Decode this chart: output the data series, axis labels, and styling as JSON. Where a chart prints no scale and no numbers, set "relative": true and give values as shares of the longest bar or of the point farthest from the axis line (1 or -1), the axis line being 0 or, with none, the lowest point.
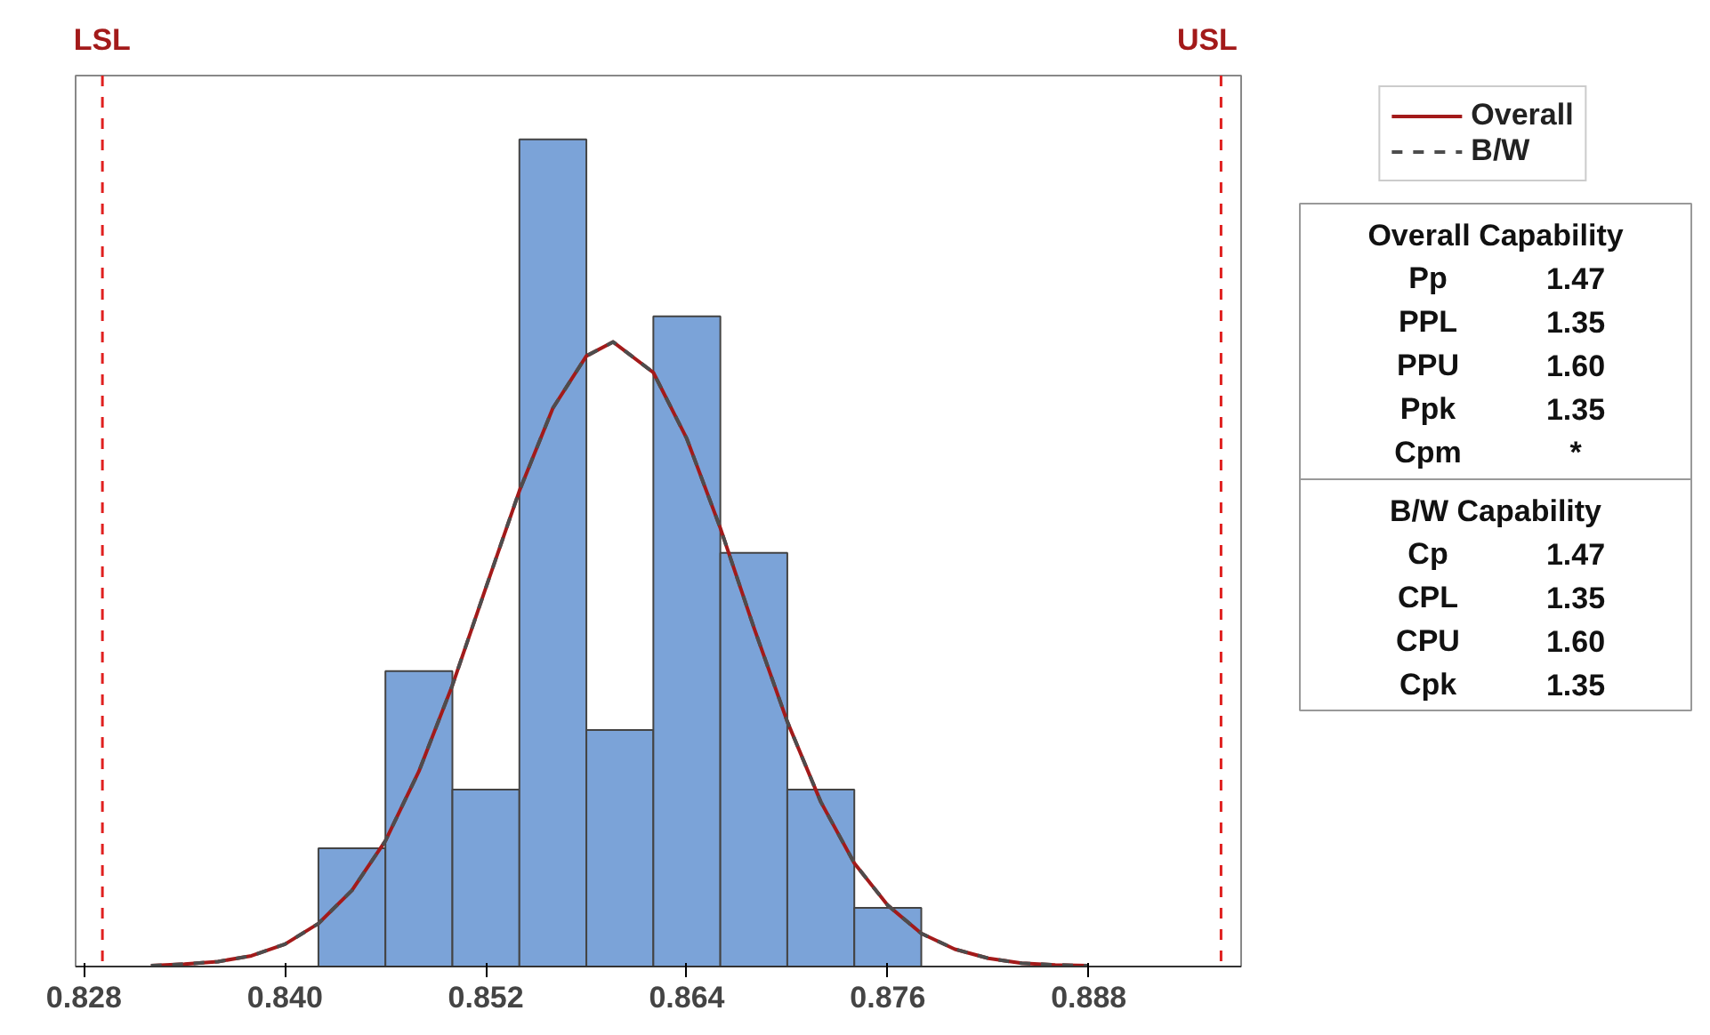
{
  "chart_data": [
    {
      "type": "histogram",
      "relative": true,
      "bins": [
        0.842,
        0.846,
        0.85,
        0.854,
        0.858,
        0.862,
        0.866,
        0.87,
        0.874,
        0.878
      ],
      "values": [
        0.143,
        0.357,
        0.214,
        1,
        0.286,
        0.786,
        0.5,
        0.214,
        0.071
      ],
      "color": "#7ba3d8",
      "series": [
        {
          "type": "line",
          "name": "Overall",
          "color": "#a31a1a",
          "line_style": "solid",
          "x": [
            0.832,
            0.834,
            0.836,
            0.838,
            0.84,
            0.842,
            0.844,
            0.846,
            0.848,
            0.85,
            0.852,
            0.854,
            0.856,
            0.858,
            0.8596,
            0.862,
            0.864,
            0.866,
            0.868,
            0.87,
            0.872,
            0.874,
            0.876,
            0.878,
            0.88,
            0.882,
            0.884,
            0.886,
            0.888
          ],
          "values": [
            0.001,
            0.003,
            0.006,
            0.013,
            0.027,
            0.052,
            0.092,
            0.152,
            0.236,
            0.34,
            0.458,
            0.575,
            0.675,
            0.738,
            0.755,
            0.718,
            0.638,
            0.53,
            0.41,
            0.296,
            0.199,
            0.125,
            0.074,
            0.04,
            0.021,
            0.01,
            0.004,
            0.002,
            0.001
          ]
        },
        {
          "type": "line",
          "name": "B/W",
          "color": "#4d4d4d",
          "line_style": "dashed",
          "x": [
            0.832,
            0.834,
            0.836,
            0.838,
            0.84,
            0.842,
            0.844,
            0.846,
            0.848,
            0.85,
            0.852,
            0.854,
            0.856,
            0.858,
            0.8596,
            0.862,
            0.864,
            0.866,
            0.868,
            0.87,
            0.872,
            0.874,
            0.876,
            0.878,
            0.88,
            0.882,
            0.884,
            0.886,
            0.888
          ],
          "values": [
            0.001,
            0.003,
            0.006,
            0.013,
            0.027,
            0.052,
            0.092,
            0.152,
            0.236,
            0.34,
            0.458,
            0.575,
            0.675,
            0.738,
            0.755,
            0.718,
            0.638,
            0.53,
            0.41,
            0.296,
            0.199,
            0.125,
            0.074,
            0.04,
            0.021,
            0.01,
            0.004,
            0.002,
            0.001
          ]
        }
      ],
      "xlim": [
        0.8275,
        0.8971
      ],
      "xticks": [
        0.828,
        {
          "value": 0.84,
          "label": "0.840"
        },
        0.852,
        0.864,
        0.876,
        0.888
      ],
      "ref_lines": [
        {
          "axis": "x",
          "value": 0.8291,
          "label": "LSL",
          "color": "#e0201f",
          "line_style": "dashed"
        },
        {
          "axis": "x",
          "value": 0.8959,
          "label": "USL",
          "color": "#e0201f",
          "line_style": "dashed"
        }
      ],
      "grid": false,
      "legend": "top right",
      "tick_labels": "x"
    },
    {
      "type": "other",
      "title": "Overall Capability",
      "annotations": [
        "Pp 1.47",
        "PPL 1.35",
        "PPU 1.60",
        "Ppk 1.35",
        "Cpm *"
      ]
    },
    {
      "type": "other",
      "title": "B/W Capability",
      "annotations": [
        "Cp 1.47",
        "CPL 1.35",
        "CPU 1.60",
        "Cpk 1.35"
      ]
    }
  ]
}
